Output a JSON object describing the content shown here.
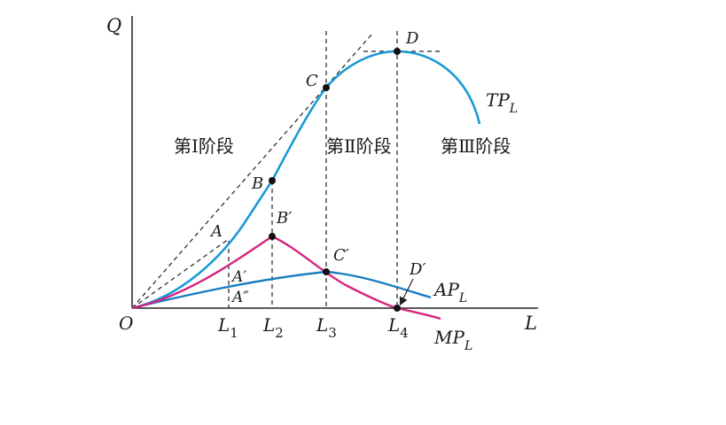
{
  "chart_data": {
    "type": "line",
    "title": "",
    "xlabel": "L",
    "ylabel": "Q",
    "origin_label": "O",
    "grid": false,
    "x_ticks": [
      {
        "main": "L",
        "sub": "1"
      },
      {
        "main": "L",
        "sub": "2"
      },
      {
        "main": "L",
        "sub": "3"
      },
      {
        "main": "L",
        "sub": "4"
      }
    ],
    "stages": [
      "第Ⅰ阶段",
      "第Ⅱ阶段",
      "第Ⅲ阶段"
    ],
    "series": [
      {
        "name": "TP",
        "sub": "L",
        "color": "#1a9ad6"
      },
      {
        "name": "AP",
        "sub": "L",
        "color": "#1a7fc0"
      },
      {
        "name": "MP",
        "sub": "L",
        "color": "#d6257f"
      }
    ],
    "points": [
      "A",
      "B",
      "C",
      "D",
      "A′",
      "A″",
      "B′",
      "C′",
      "D′"
    ]
  }
}
